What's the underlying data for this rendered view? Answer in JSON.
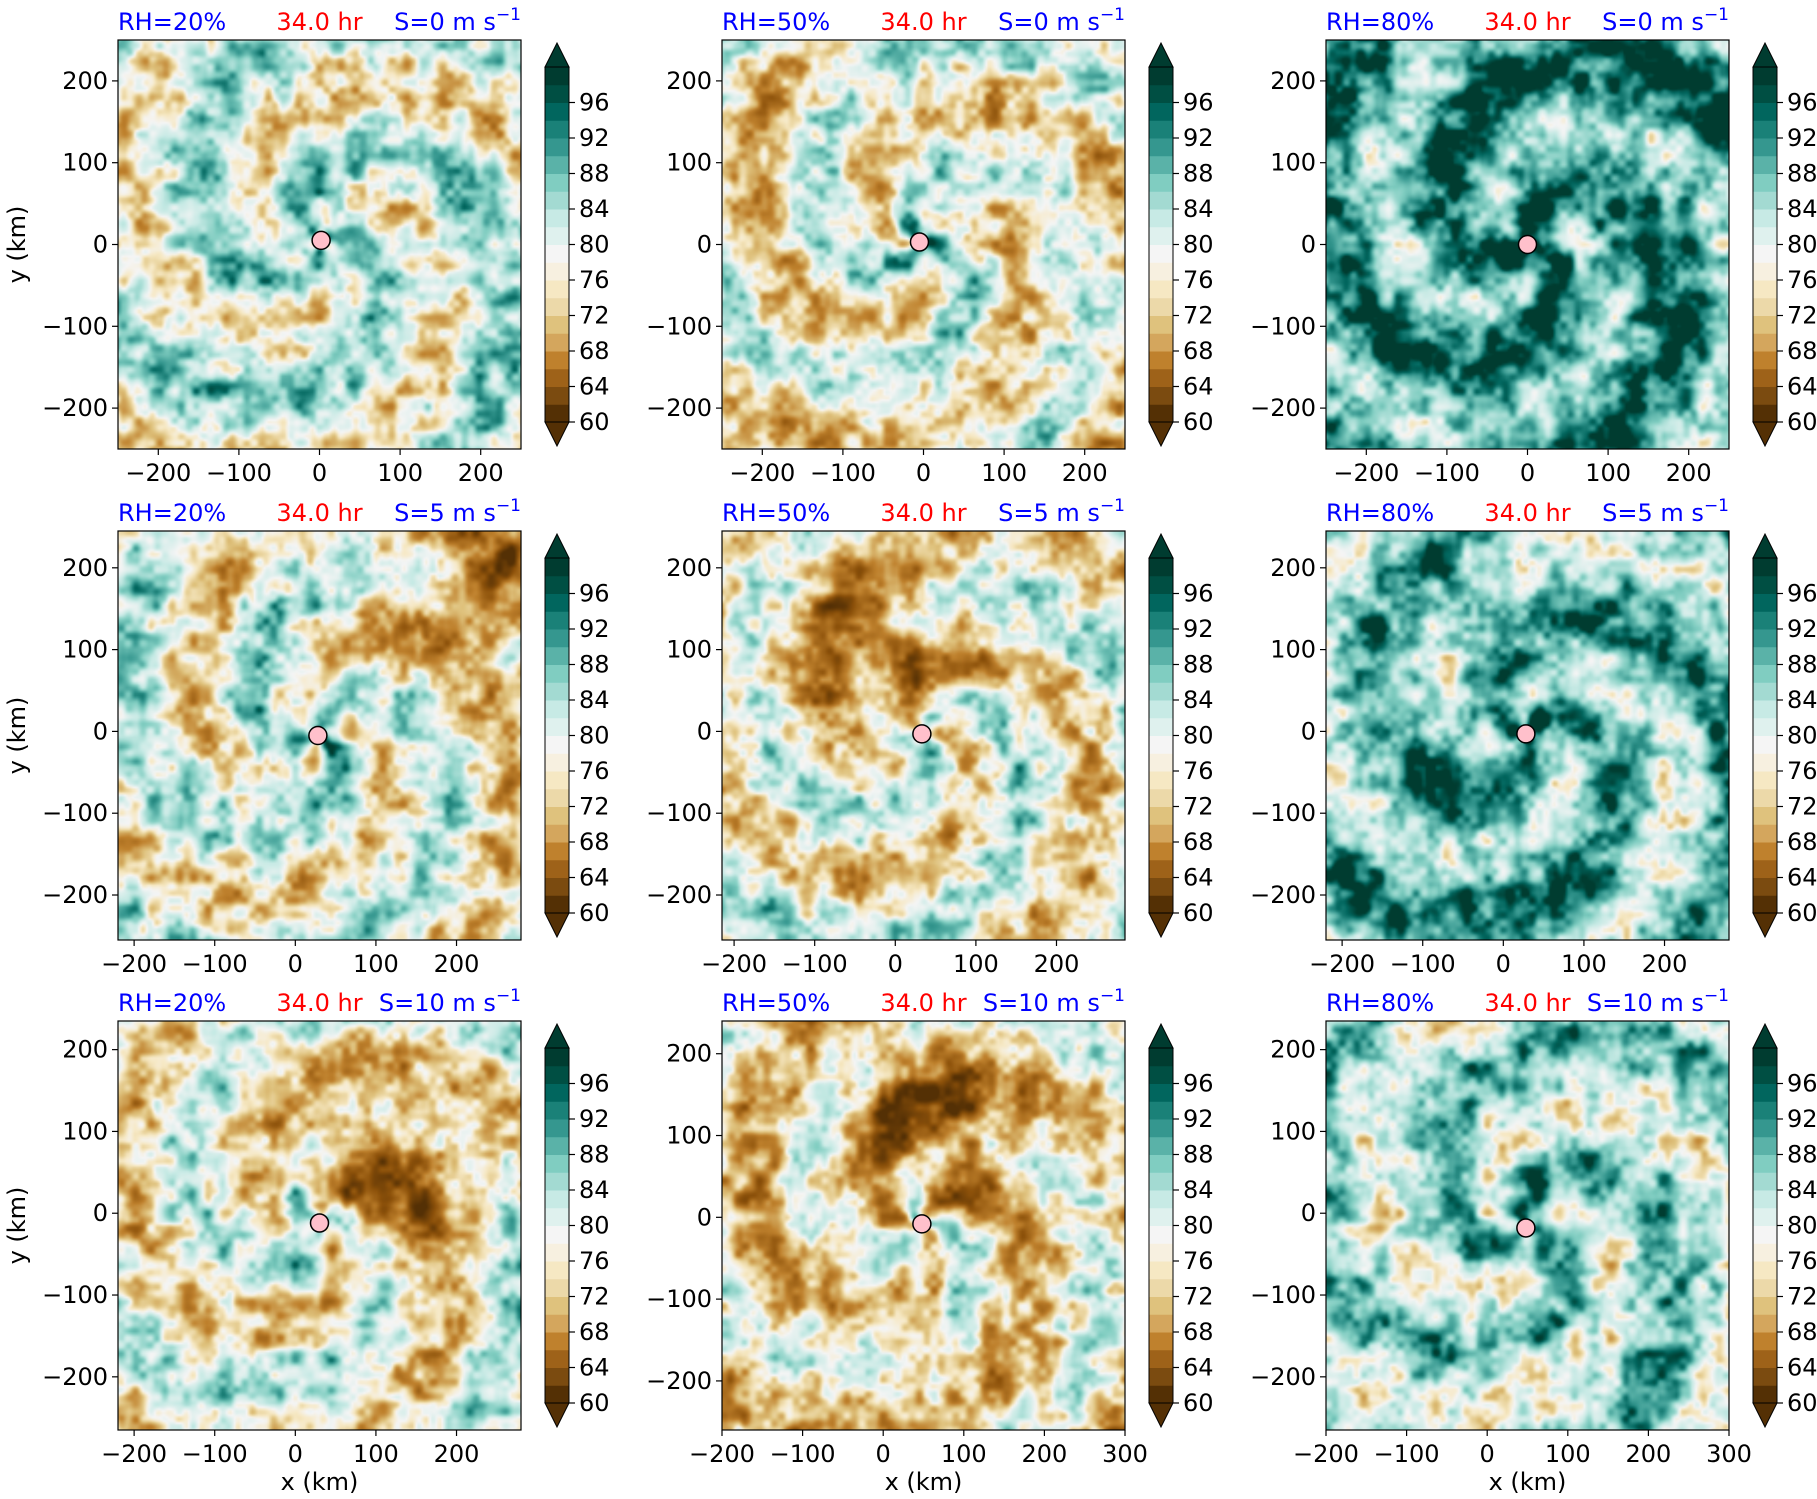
{
  "chart_data": {
    "type": "heatmap",
    "layout": {
      "rows": 3,
      "cols": 3
    },
    "colorbar": {
      "min": 60,
      "max": 100,
      "step": 2,
      "extend": "both",
      "ticks": [
        60,
        64,
        68,
        72,
        76,
        80,
        84,
        88,
        92,
        96
      ],
      "tick_labels": [
        "60",
        "64",
        "68",
        "72",
        "76",
        "80",
        "84",
        "88",
        "92",
        "96"
      ],
      "colormap": "BrBG",
      "colors": [
        "#543005",
        "#7b4b10",
        "#9e6219",
        "#bf812d",
        "#d4a65d",
        "#dfc27d",
        "#ecd9a9",
        "#f6e8c3",
        "#f7f0e0",
        "#f5f5f5",
        "#dff1ee",
        "#c7eae5",
        "#a3dad2",
        "#80cdc1",
        "#5ab2a8",
        "#35978f",
        "#1a8178",
        "#01665e",
        "#004f43",
        "#003c30"
      ]
    },
    "ylabel": "y (km)",
    "xlabel": "x (km)",
    "panels": [
      {
        "rh": "RH=20%",
        "time": "34.0 hr",
        "shear_text": "S=0 m s",
        "shear_exp": "−1",
        "xlim": [
          -250,
          250
        ],
        "ylim": [
          -250,
          250
        ],
        "xticks": [
          -200,
          -100,
          0,
          100,
          200
        ],
        "yticks": [
          -200,
          -100,
          0,
          100,
          200
        ],
        "xticklabels": [
          "−200",
          "−100",
          "0",
          "100",
          "200"
        ],
        "yticklabels": [
          "−200",
          "−100",
          "0",
          "100",
          "200"
        ],
        "center": [
          2,
          5
        ],
        "moist": 0.5,
        "dry_patch": null
      },
      {
        "rh": "RH=50%",
        "time": "34.0 hr",
        "shear_text": "S=0 m s",
        "shear_exp": "−1",
        "xlim": [
          -250,
          250
        ],
        "ylim": [
          -250,
          250
        ],
        "xticks": [
          -200,
          -100,
          0,
          100,
          200
        ],
        "yticks": [
          -200,
          -100,
          0,
          100,
          200
        ],
        "xticklabels": [
          "−200",
          "−100",
          "0",
          "100",
          "200"
        ],
        "yticklabels": [
          "−200",
          "−100",
          "0",
          "100",
          "200"
        ],
        "center": [
          -5,
          3
        ],
        "moist": 0.4,
        "dry_patch": null
      },
      {
        "rh": "RH=80%",
        "time": "34.0 hr",
        "shear_text": "S=0 m s",
        "shear_exp": "−1",
        "xlim": [
          -250,
          250
        ],
        "ylim": [
          -250,
          250
        ],
        "xticks": [
          -200,
          -100,
          0,
          100,
          200
        ],
        "yticks": [
          -200,
          -100,
          0,
          100,
          200
        ],
        "xticklabels": [
          "−200",
          "−100",
          "0",
          "100",
          "200"
        ],
        "yticklabels": [
          "−200",
          "−100",
          "0",
          "100",
          "200"
        ],
        "center": [
          0,
          0
        ],
        "moist": 0.85,
        "dry_patch": null
      },
      {
        "rh": "RH=20%",
        "time": "34.0 hr",
        "shear_text": "S=5 m s",
        "shear_exp": "−1",
        "xlim": [
          -220,
          280
        ],
        "ylim": [
          -255,
          245
        ],
        "xticks": [
          -200,
          -100,
          0,
          100,
          200
        ],
        "yticks": [
          -200,
          -100,
          0,
          100,
          200
        ],
        "xticklabels": [
          "−200",
          "−100",
          "0",
          "100",
          "200"
        ],
        "yticklabels": [
          "−200",
          "−100",
          "0",
          "100",
          "200"
        ],
        "center": [
          28,
          -5
        ],
        "moist": 0.45,
        "dry_patch": [
          230,
          180
        ]
      },
      {
        "rh": "RH=50%",
        "time": "34.0 hr",
        "shear_text": "S=5 m s",
        "shear_exp": "−1",
        "xlim": [
          -215,
          285
        ],
        "ylim": [
          -255,
          245
        ],
        "xticks": [
          -200,
          -100,
          0,
          100,
          200
        ],
        "yticks": [
          -200,
          -100,
          0,
          100,
          200
        ],
        "xticklabels": [
          "−200",
          "−100",
          "0",
          "100",
          "200"
        ],
        "yticklabels": [
          "−200",
          "−100",
          "0",
          "100",
          "200"
        ],
        "center": [
          33,
          -3
        ],
        "moist": 0.4,
        "dry_patch": [
          -20,
          100
        ]
      },
      {
        "rh": "RH=80%",
        "time": "34.0 hr",
        "shear_text": "S=5 m s",
        "shear_exp": "−1",
        "xlim": [
          -220,
          280
        ],
        "ylim": [
          -255,
          245
        ],
        "xticks": [
          -200,
          -100,
          0,
          100,
          200
        ],
        "yticks": [
          -200,
          -100,
          0,
          100,
          200
        ],
        "xticklabels": [
          "−200",
          "−100",
          "0",
          "100",
          "200"
        ],
        "yticklabels": [
          "−200",
          "−100",
          "0",
          "100",
          "200"
        ],
        "center": [
          28,
          -3
        ],
        "moist": 0.75,
        "dry_patch": null
      },
      {
        "rh": "RH=20%",
        "time": "34.0 hr",
        "shear_text": "S=10 m s",
        "shear_exp": "−1",
        "xlim": [
          -220,
          280
        ],
        "ylim": [
          -265,
          235
        ],
        "xticks": [
          -200,
          -100,
          0,
          100,
          200
        ],
        "yticks": [
          -200,
          -100,
          0,
          100,
          200
        ],
        "xticklabels": [
          "−200",
          "−100",
          "0",
          "100",
          "200"
        ],
        "yticklabels": [
          "−200",
          "−100",
          "0",
          "100",
          "200"
        ],
        "center": [
          30,
          -12
        ],
        "moist": 0.42,
        "dry_patch": [
          120,
          40
        ]
      },
      {
        "rh": "RH=50%",
        "time": "34.0 hr",
        "shear_text": "S=10 m s",
        "shear_exp": "−1",
        "xlim": [
          -200,
          300
        ],
        "ylim": [
          -260,
          240
        ],
        "xticks": [
          -200,
          -100,
          0,
          100,
          200,
          300
        ],
        "yticks": [
          -200,
          -100,
          0,
          100,
          200
        ],
        "xticklabels": [
          "−200",
          "−100",
          "0",
          "100",
          "200",
          "300"
        ],
        "yticklabels": [
          "−200",
          "−100",
          "0",
          "100",
          "200"
        ],
        "center": [
          48,
          -8
        ],
        "moist": 0.32,
        "dry_patch": [
          60,
          110
        ]
      },
      {
        "rh": "RH=80%",
        "time": "34.0 hr",
        "shear_text": "S=10 m s",
        "shear_exp": "−1",
        "xlim": [
          -200,
          300
        ],
        "ylim": [
          -265,
          235
        ],
        "xticks": [
          -200,
          -100,
          0,
          100,
          200,
          300
        ],
        "yticks": [
          -200,
          -100,
          0,
          100,
          200
        ],
        "xticklabels": [
          "−200",
          "−100",
          "0",
          "100",
          "200",
          "300"
        ],
        "yticklabels": [
          "−200",
          "−100",
          "0",
          "100",
          "200"
        ],
        "center": [
          48,
          -18
        ],
        "moist": 0.62,
        "dry_patch": null
      }
    ]
  }
}
